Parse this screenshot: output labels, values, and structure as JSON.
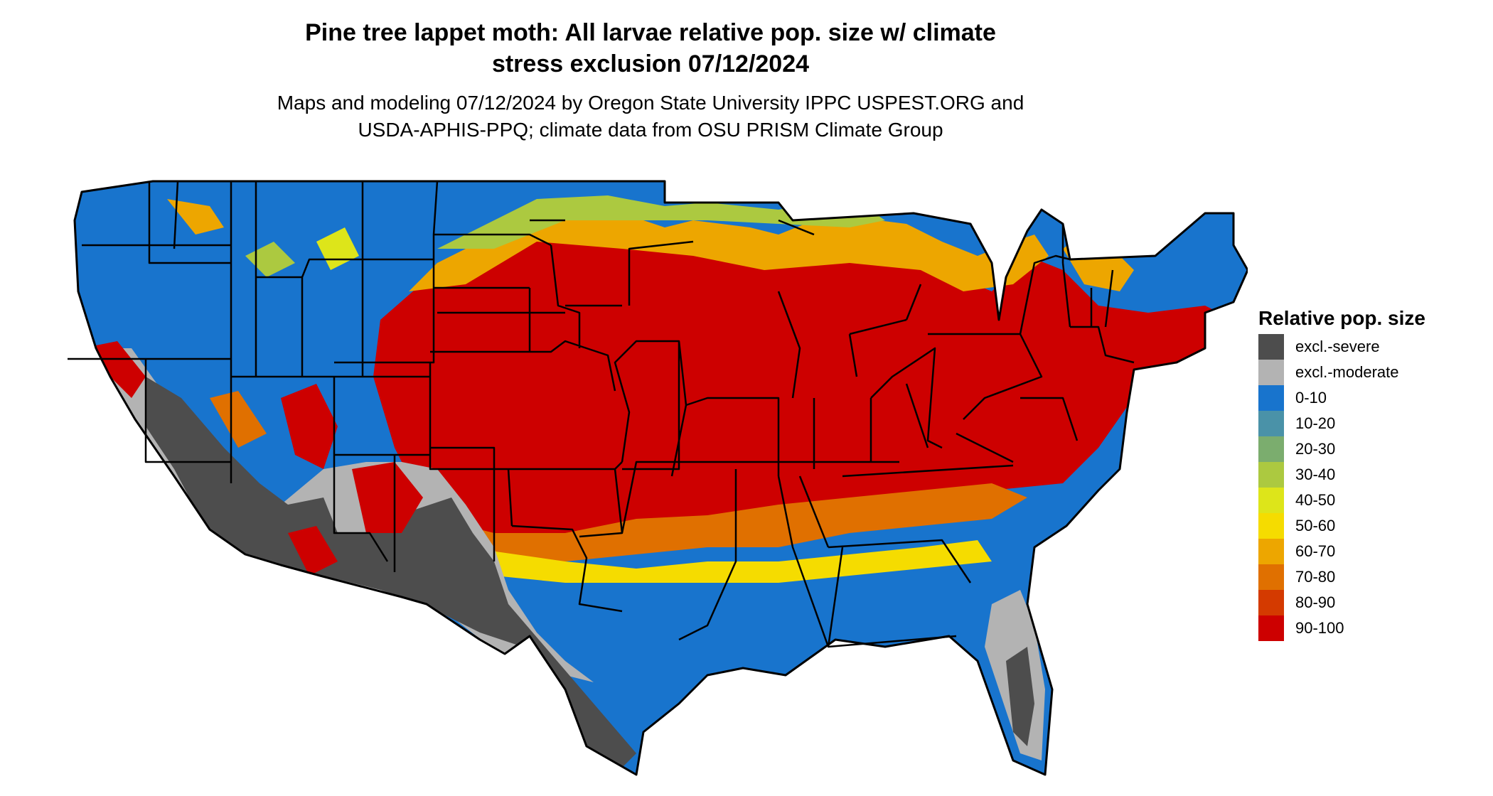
{
  "title": {
    "line1": "Pine tree lappet moth: All larvae relative pop. size w/ climate",
    "line2": "stress exclusion 07/12/2024"
  },
  "subtitle": {
    "line1": "Maps and modeling 07/12/2024 by Oregon State University IPPC USPEST.ORG and",
    "line2": "USDA-APHIS-PPQ; climate data from OSU PRISM Climate Group"
  },
  "legend": {
    "title": "Relative pop. size",
    "items": [
      {
        "label": "excl.-severe",
        "color": "#4d4d4d"
      },
      {
        "label": "excl.-moderate",
        "color": "#b3b3b3"
      },
      {
        "label": "0-10",
        "color": "#1874cd"
      },
      {
        "label": "10-20",
        "color": "#4a92a8"
      },
      {
        "label": "20-30",
        "color": "#7bad6e"
      },
      {
        "label": "30-40",
        "color": "#acc940"
      },
      {
        "label": "40-50",
        "color": "#dde51a"
      },
      {
        "label": "50-60",
        "color": "#f5dc00"
      },
      {
        "label": "60-70",
        "color": "#eda600"
      },
      {
        "label": "70-80",
        "color": "#e07000"
      },
      {
        "label": "80-90",
        "color": "#d43a00"
      },
      {
        "label": "90-100",
        "color": "#cd0000"
      }
    ]
  }
}
